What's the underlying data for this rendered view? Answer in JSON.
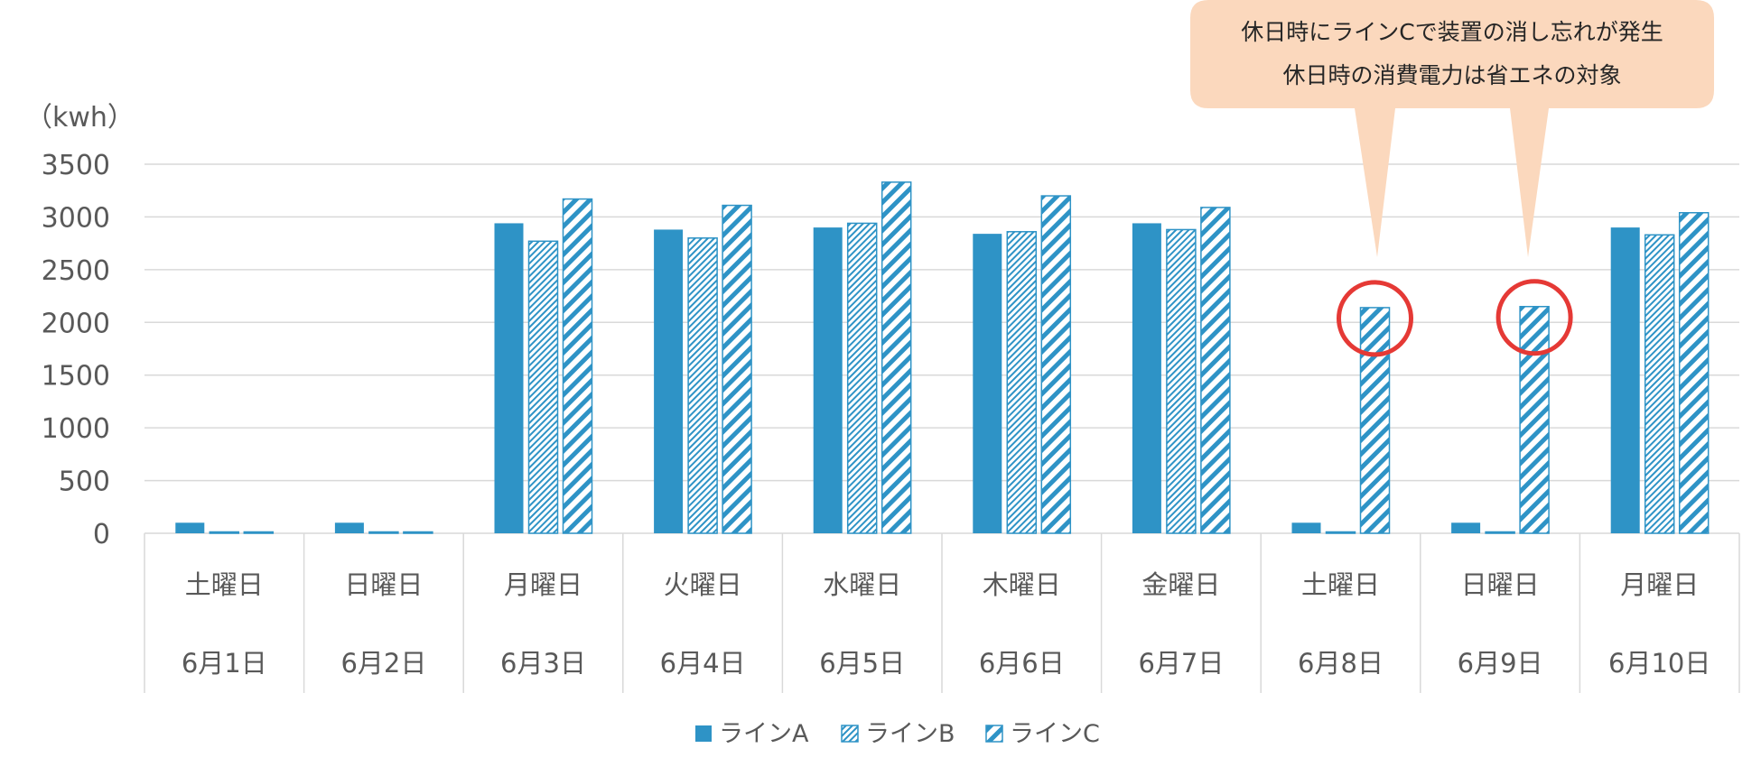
{
  "chart_data": {
    "type": "bar",
    "unit_label": "（kwh）",
    "ylim": [
      0,
      3500
    ],
    "yticks": [
      0,
      500,
      1000,
      1500,
      2000,
      2500,
      3000,
      3500
    ],
    "grid": true,
    "legend_position": "bottom",
    "categories": [
      {
        "day": "土曜日",
        "date": "6月1日"
      },
      {
        "day": "日曜日",
        "date": "6月2日"
      },
      {
        "day": "月曜日",
        "date": "6月3日"
      },
      {
        "day": "火曜日",
        "date": "6月4日"
      },
      {
        "day": "水曜日",
        "date": "6月5日"
      },
      {
        "day": "木曜日",
        "date": "6月6日"
      },
      {
        "day": "金曜日",
        "date": "6月7日"
      },
      {
        "day": "土曜日",
        "date": "6月8日"
      },
      {
        "day": "日曜日",
        "date": "6月9日"
      },
      {
        "day": "月曜日",
        "date": "6月10日"
      }
    ],
    "series": [
      {
        "name": "ラインA",
        "style": "solid",
        "values": [
          100,
          100,
          2940,
          2880,
          2900,
          2840,
          2940,
          100,
          100,
          2900
        ]
      },
      {
        "name": "ラインB",
        "style": "fine-hatch",
        "values": [
          10,
          10,
          2770,
          2800,
          2940,
          2860,
          2880,
          10,
          10,
          2830
        ]
      },
      {
        "name": "ラインC",
        "style": "wide-hatch",
        "values": [
          10,
          10,
          3170,
          3110,
          3330,
          3200,
          3090,
          2140,
          2150,
          3040
        ]
      }
    ],
    "highlighted_bars": [
      {
        "series": "ラインC",
        "category_index": 7
      },
      {
        "series": "ラインC",
        "category_index": 8
      }
    ],
    "annotation": {
      "lines": [
        "休日時にラインCで装置の消し忘れが発生",
        "休日時の消費電力は省エネの対象"
      ]
    }
  },
  "colors": {
    "bar": "#2e93c6",
    "grid": "#d9d9d9",
    "axis_text": "#595959",
    "highlight_circle": "#e53935",
    "callout_fill": "#fbd8bd"
  }
}
